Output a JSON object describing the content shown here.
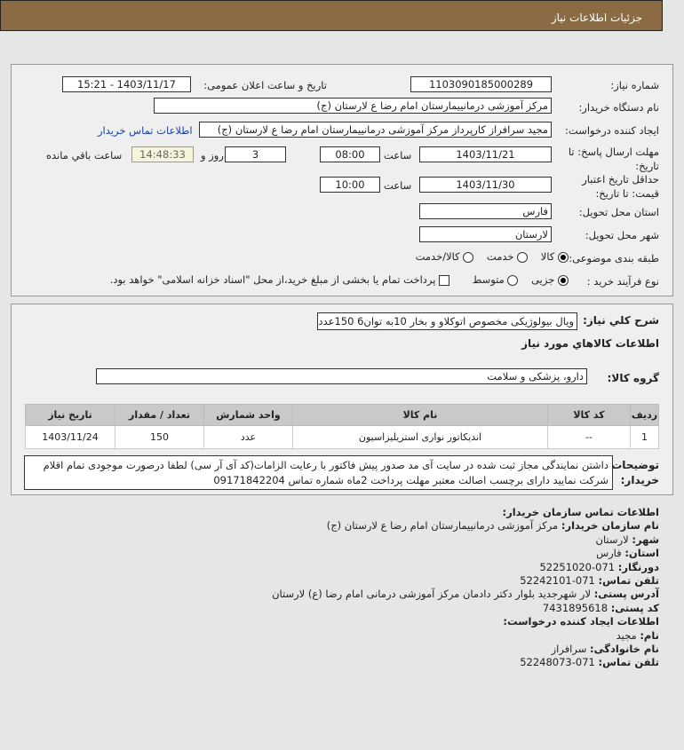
{
  "header": {
    "title": "جزئیات اطلاعات نیاز"
  },
  "form": {
    "need_number_label": "شماره نیاز:",
    "need_number": "1103090185000289",
    "announce_label": "تاریخ و ساعت اعلان عمومی:",
    "announce_value": "1403/11/17 - 15:21",
    "buyer_label": "نام دستگاه خریدار:",
    "buyer_value": "مرکز آموزشی درمانییمارستان امام رضا  ع  لارستان (ج)",
    "creator_label": "ایجاد کننده درخواست:",
    "creator_value": "مجید سرافراز کارپرداز  مرکز آموزشی درمانییمارستان امام رضا  ع  لارستان (ج)",
    "contact_link": "اطلاعات تماس خریدار",
    "deadline_label": "مهلت ارسال پاسخ: تا تاریخ:",
    "deadline_date": "1403/11/21",
    "time_label": "ساعت",
    "deadline_time": "08:00",
    "days": "3",
    "days_label": "روز و",
    "remaining": "14:48:33",
    "remaining_label": "ساعت باقي مانده",
    "validity_label": "حداقل تاریخ اعتبار قیمت: تا تاریخ:",
    "validity_date": "1403/11/30",
    "validity_time": "10:00",
    "province_label": "استان محل تحویل:",
    "province": "فارس",
    "city_label": "شهر محل تحویل:",
    "city": "لارستان",
    "category_label": "طبقه بندی موضوعی:",
    "category_options": [
      "کالا",
      "خدمت",
      "کالا/خدمت"
    ],
    "category_selected": "کالا",
    "process_label": "نوع فرآیند خرید :",
    "process_options": [
      "جزیی",
      "متوسط"
    ],
    "process_selected": "جزیی",
    "payment_note": "پرداخت تمام یا بخشی از مبلغ خرید،از محل \"اسناد خزانه اسلامی\" خواهد بود."
  },
  "details": {
    "summary_label": "شرح کلي نياز:",
    "summary": "ویال بیولوژیکی مخصوص اتوکلاو و بخار 10به توان6 150عدد",
    "goods_title": "اطلاعات کالاهاي مورد نياز",
    "group_label": "گروه کالا:",
    "group": "دارو، پزشکی و سلامت",
    "table": {
      "headers": [
        "ردیف",
        "کد کالا",
        "نام کالا",
        "واحد شمارش",
        "تعداد / مقدار",
        "تاریخ نیاز"
      ],
      "rows": [
        [
          "1",
          "--",
          "اندیکاتور نواری استریلیزاسیون",
          "عدد",
          "150",
          "1403/11/24"
        ]
      ]
    },
    "notes_label": "توضیحات خریدار:",
    "notes": "داشتن نمایندگی مجاز ثبت شده در سایت آی مد صدور پیش فاکتور با رعایت الزامات(کد آی آر سی) لطفا درصورت موجودی تمام اقلام شرکت نمایید دارای برچسب اصالت معتبر مهلت پرداخت 2ماه شماره تماس 09171842204"
  },
  "contact": {
    "title": "اطلاعات تماس سازمان خریدار:",
    "org_label": "نام سازمان خریدار:",
    "org": "مرکز آموزشی درمانییمارستان امام رضا ع لارستان (ج)",
    "city_label": "شهر:",
    "city": "لارستان",
    "province_label": "استان:",
    "province": "فارس",
    "fax_label": "دورنگار:",
    "fax": "071-52251020",
    "phone_label": "تلفن تماس:",
    "phone": "071-52242101",
    "address_label": "آدرس پستی:",
    "address": "لار شهرجدید بلوار دکتر دادمان مرکز آموزشی درمانی امام رضا (ع) لارستان",
    "postal_label": "کد پستی:",
    "postal": "7431895618",
    "creator_title": "اطلاعات ایجاد کننده درخواست:",
    "name_label": "نام:",
    "name": "مجید",
    "family_label": "نام خانوادگی:",
    "family": "سرافراز",
    "creator_phone_label": "تلفن تماس:",
    "creator_phone": "071-52248073"
  }
}
